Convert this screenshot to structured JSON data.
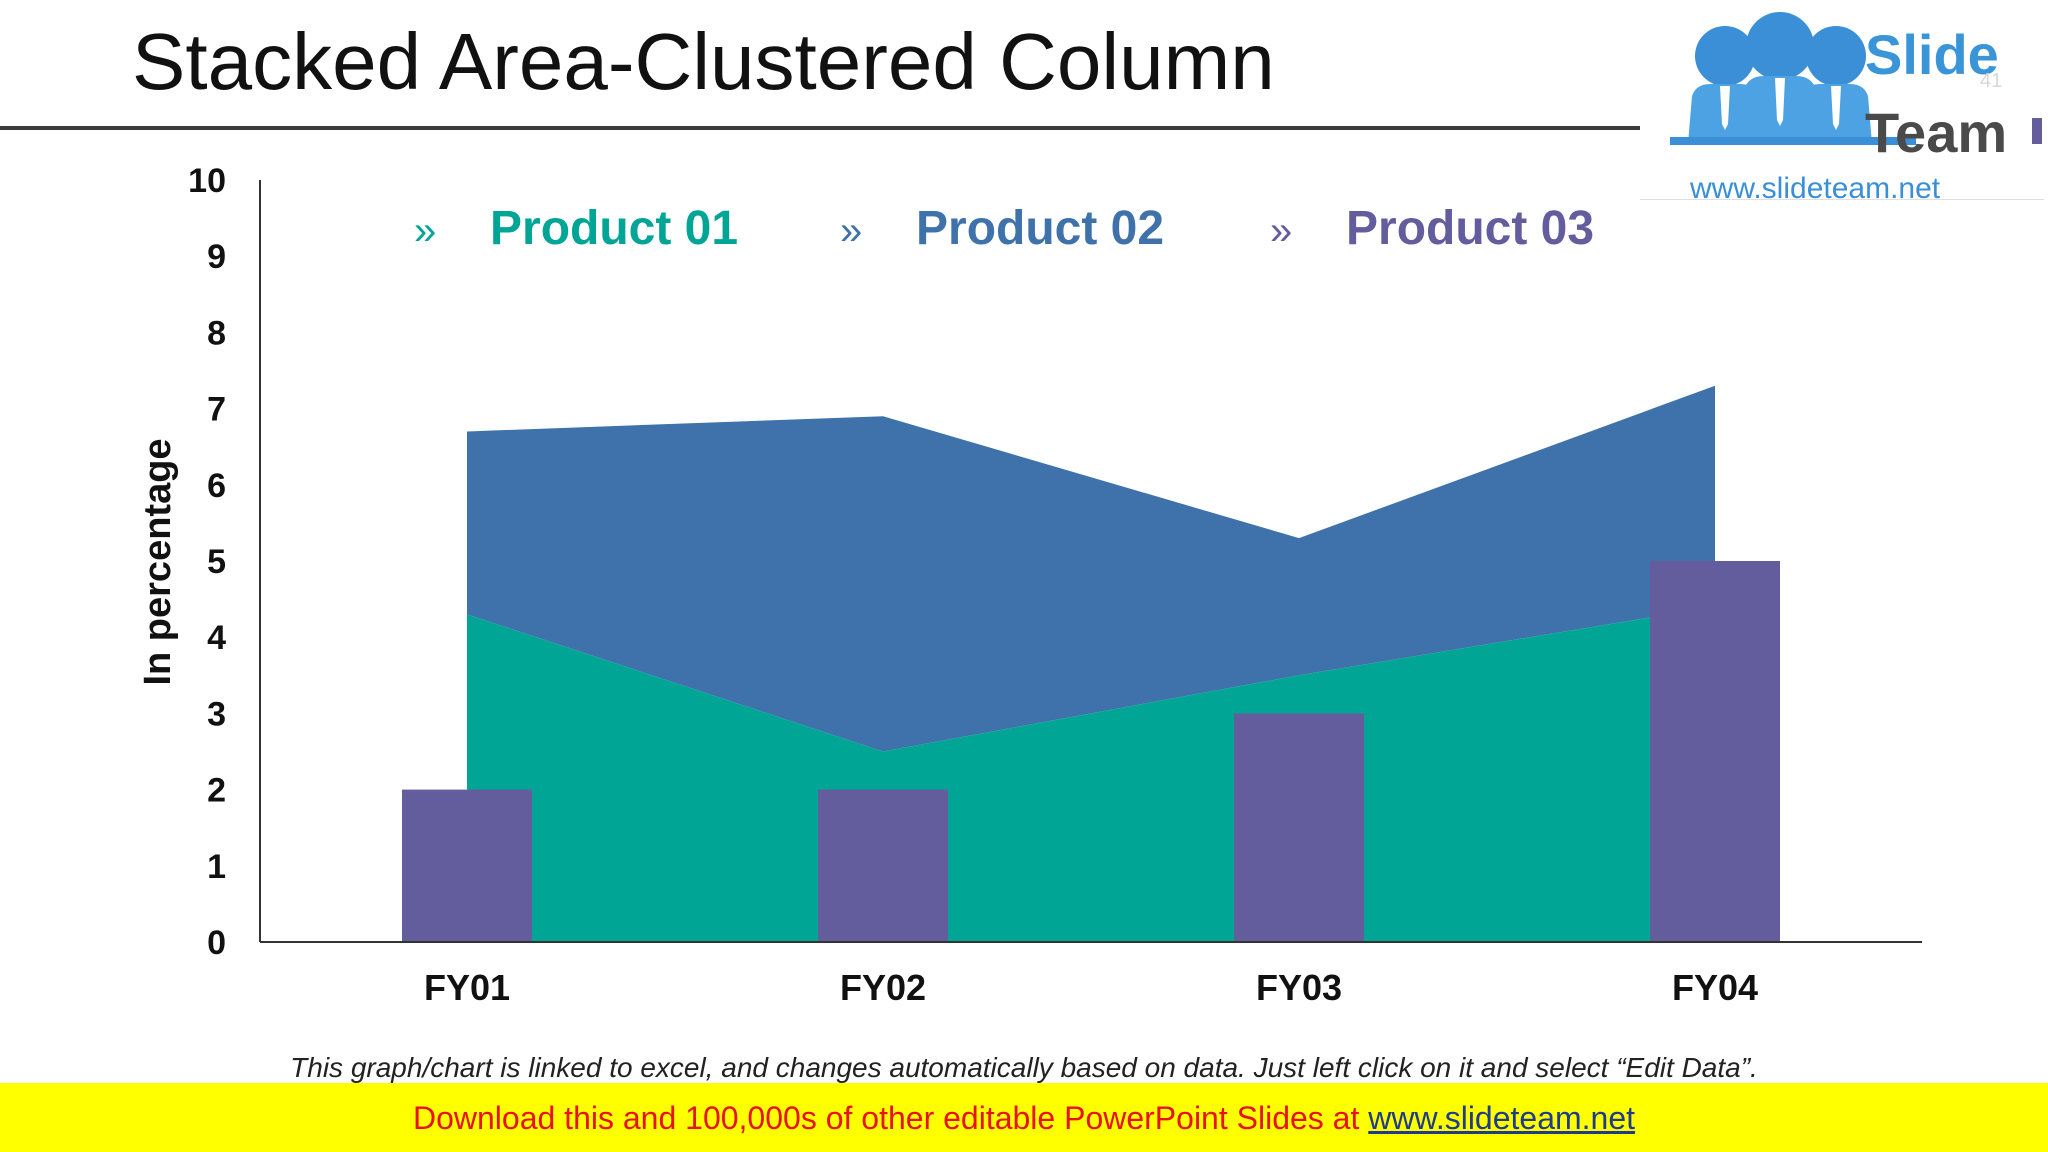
{
  "slide": {
    "title": "Stacked Area-Clustered Column",
    "footnote": "This graph/chart is linked to excel, and changes automatically based on data. Just left click on it and select “Edit Data”.",
    "slide_number": "41"
  },
  "logo": {
    "name_top": "Slide",
    "name_bottom": "Team",
    "url": "www.slideteam.net"
  },
  "banner": {
    "text": "Download this and 100,000s of other editable PowerPoint Slides at ",
    "link": "www.slideteam.net"
  },
  "colors": {
    "product01": "#00a596",
    "product02": "#3f72aa",
    "product03": "#635d9e",
    "axis": "#333333",
    "banner_background": "#ffff00",
    "banner_text": "#e8121a",
    "link": "#1f3c8c"
  },
  "chart_data": {
    "type": "area",
    "categories": [
      "FY01",
      "FY02",
      "FY03",
      "FY04"
    ],
    "ylabel": "In percentage",
    "xlabel": "",
    "ylim": [
      0,
      10
    ],
    "yticks": [
      "0",
      "1",
      "2",
      "3",
      "4",
      "5",
      "6",
      "7",
      "8",
      "9",
      "10"
    ],
    "legend_position": "top",
    "legend_marker": "»",
    "grid": false,
    "series": [
      {
        "name": "Product 01",
        "kind": "stacked-area",
        "values": [
          4.3,
          2.5,
          3.5,
          4.4
        ]
      },
      {
        "name": "Product 02",
        "kind": "stacked-area",
        "values": [
          2.4,
          4.4,
          1.8,
          2.9
        ]
      },
      {
        "name": "Product 03",
        "kind": "clustered-column",
        "values": [
          2,
          2,
          3,
          5
        ]
      }
    ]
  }
}
